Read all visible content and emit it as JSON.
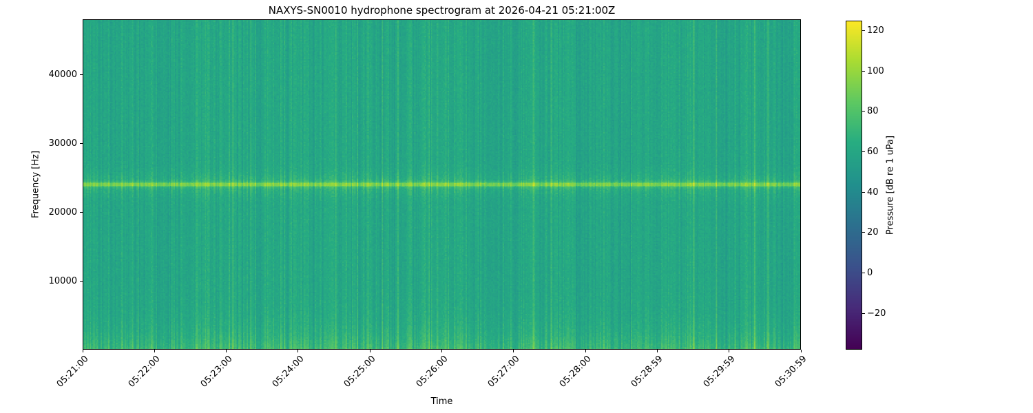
{
  "figure": {
    "title": "NAXYS-SN0010 hydrophone spectrogram at 2026-04-21 05:21:00Z",
    "xlabel": "Time",
    "ylabel": "Frequency [Hz]",
    "colorbar_label": "Pressure [dB re 1 uPa]",
    "background_color": "#ffffff",
    "frame_color": "#000000",
    "text_color": "#000000"
  },
  "chart_data": {
    "type": "heatmap",
    "title": "NAXYS-SN0010 hydrophone spectrogram at 2026-04-21 05:21:00Z",
    "xlabel": "Time",
    "ylabel": "Frequency [Hz]",
    "x_tick_labels": [
      "05:21:00",
      "05:22:00",
      "05:23:00",
      "05:24:00",
      "05:25:00",
      "05:26:00",
      "05:27:00",
      "05:28:00",
      "05:28:59",
      "05:29:59",
      "05:30:59"
    ],
    "y_ticks": [
      10000,
      20000,
      30000,
      40000
    ],
    "ylim": [
      0,
      48000
    ],
    "time_start": "05:21:00",
    "time_end": "05:30:59",
    "n_time_columns": 600,
    "n_freq_rows": 240,
    "grid": false,
    "legend": "colorbar",
    "colormap": "viridis",
    "colormap_stops": [
      [
        0.0,
        68,
        1,
        84
      ],
      [
        0.13,
        71,
        44,
        122
      ],
      [
        0.25,
        59,
        81,
        139
      ],
      [
        0.38,
        44,
        113,
        142
      ],
      [
        0.5,
        33,
        144,
        141
      ],
      [
        0.63,
        39,
        173,
        129
      ],
      [
        0.75,
        92,
        200,
        99
      ],
      [
        0.88,
        170,
        220,
        50
      ],
      [
        1.0,
        253,
        231,
        37
      ]
    ],
    "colorbar": {
      "label": "Pressure [dB re 1 uPa]",
      "ticks": [
        -20,
        0,
        20,
        40,
        60,
        80,
        100,
        120
      ],
      "vmin": -38,
      "vmax": 125,
      "position": "right"
    },
    "features": {
      "background_level_db": 60,
      "tonal_band": {
        "center_hz": 24000,
        "peak_level_db": 96,
        "bandwidth_hz": 700
      },
      "low_frequency_boost": {
        "level_db": 74,
        "decay_hz": 2500
      },
      "vertical_striping_db": 8,
      "pixel_noise_db": 3
    },
    "frequency_profile_db": [
      {
        "freq_hz": 500,
        "level_db": 74
      },
      {
        "freq_hz": 12000,
        "level_db": 60
      },
      {
        "freq_hz": 24000,
        "level_db": 96
      },
      {
        "freq_hz": 36000,
        "level_db": 60
      },
      {
        "freq_hz": 47500,
        "level_db": 61
      }
    ]
  }
}
